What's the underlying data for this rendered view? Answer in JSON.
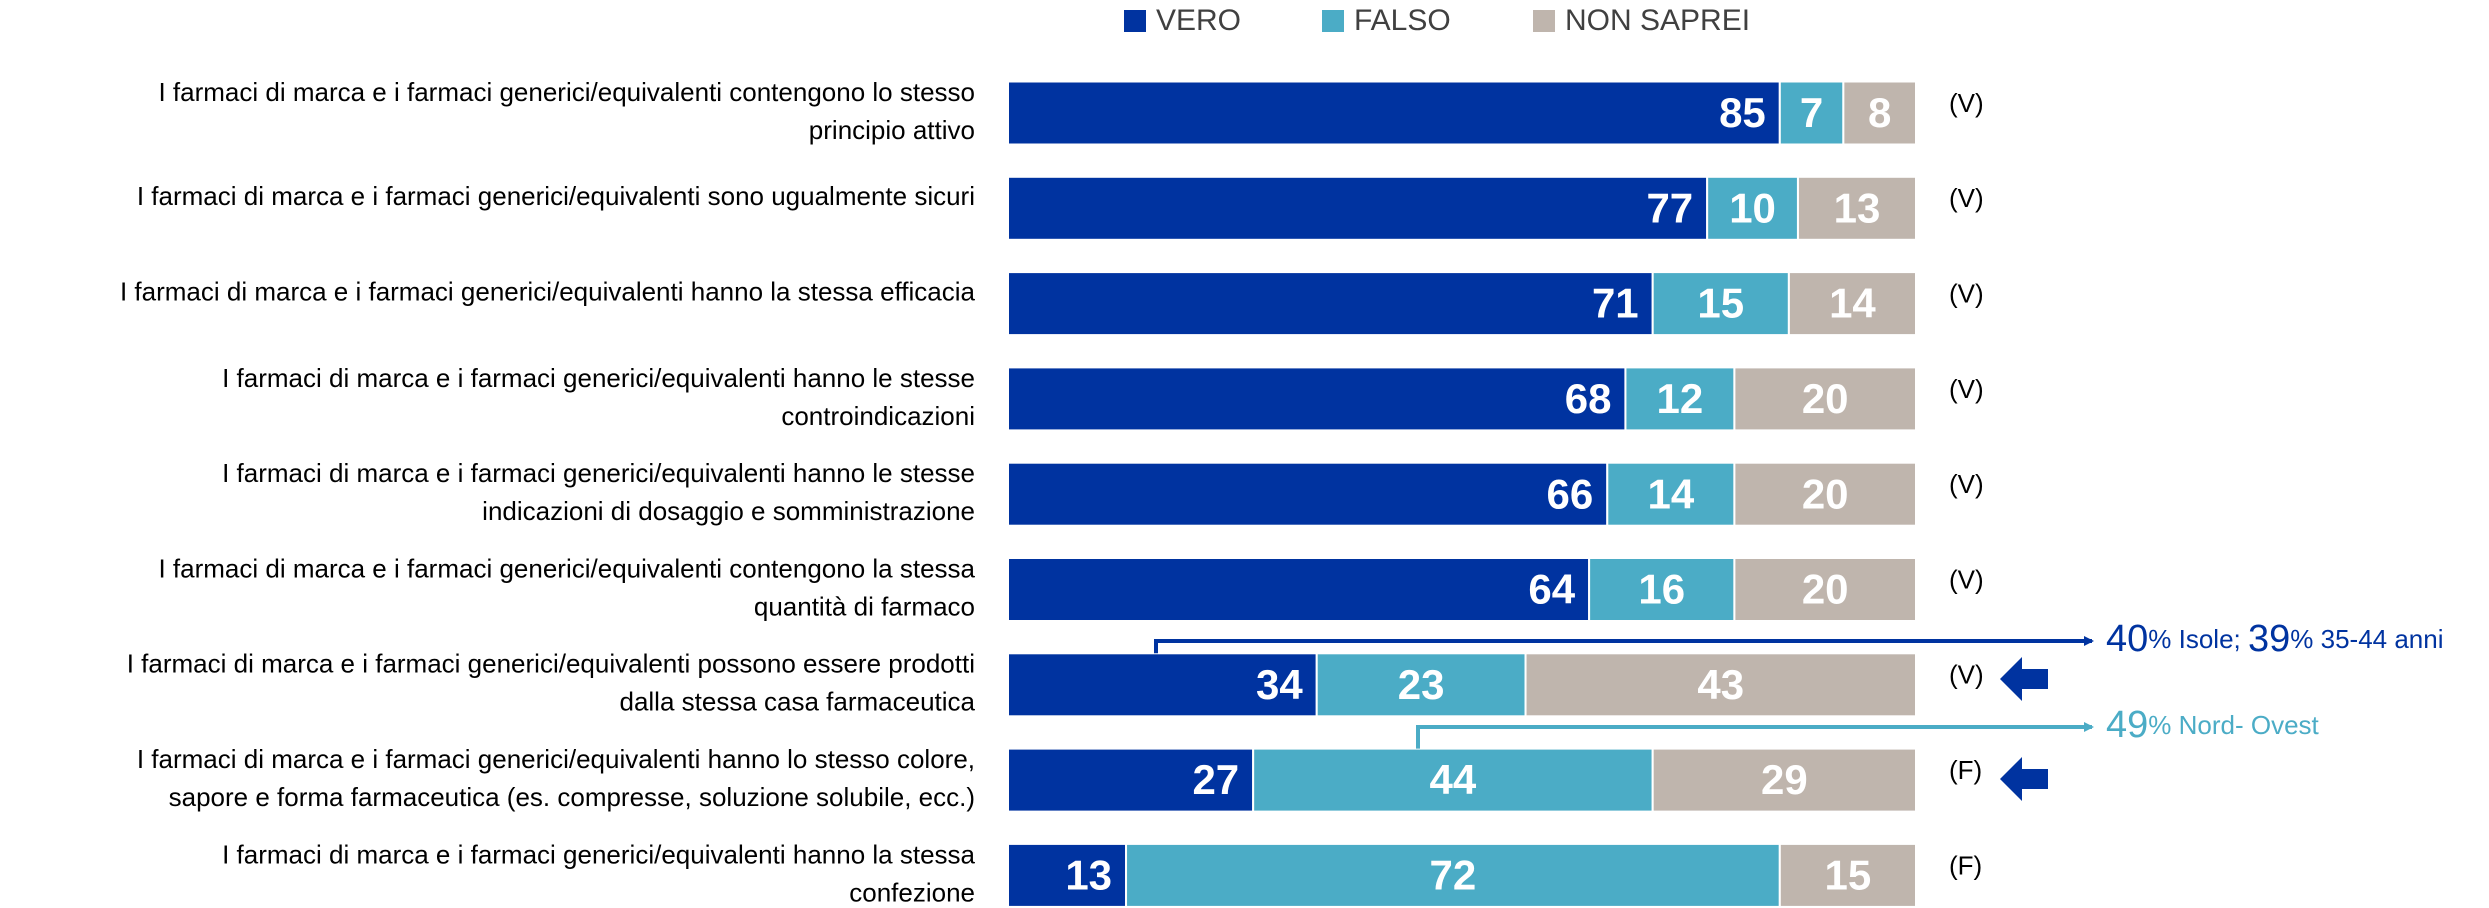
{
  "chart_data": {
    "type": "stacked_bar_horizontal",
    "categories": [
      [
        "I farmaci di marca e i farmaci generici/equivalenti contengono lo stesso",
        "principio attivo"
      ],
      [
        "I farmaci di marca e i farmaci generici/equivalenti sono ugualmente sicuri"
      ],
      [
        "I farmaci di marca e i farmaci generici/equivalenti hanno la stessa efficacia"
      ],
      [
        "I farmaci di marca e i farmaci generici/equivalenti hanno le stesse",
        "controindicazioni"
      ],
      [
        "I farmaci di marca e i farmaci generici/equivalenti hanno le stesse",
        "indicazioni di dosaggio e somministrazione"
      ],
      [
        "I farmaci di marca e i farmaci generici/equivalenti contengono la stessa",
        "quantità di farmaco"
      ],
      [
        "I farmaci di marca e i farmaci generici/equivalenti possono essere prodotti",
        "dalla stessa casa farmaceutica"
      ],
      [
        "I farmaci di marca e i farmaci generici/equivalenti hanno lo stesso colore,",
        "sapore e forma farmaceutica (es. compresse, soluzione solubile, ecc.)"
      ],
      [
        "I farmaci di marca e i farmaci generici/equivalenti hanno la stessa",
        "confezione"
      ]
    ],
    "series": [
      {
        "name": "VERO",
        "color": "#0033a0",
        "values": [
          85,
          77,
          71,
          68,
          66,
          64,
          34,
          27,
          13
        ]
      },
      {
        "name": "FALSO",
        "color": "#4bacc6",
        "values": [
          7,
          10,
          15,
          12,
          14,
          16,
          23,
          44,
          72
        ]
      },
      {
        "name": "NON SAPREI",
        "color": "#bfb5ad",
        "values": [
          8,
          13,
          14,
          20,
          20,
          20,
          43,
          29,
          15
        ]
      }
    ],
    "xlim": [
      0,
      100
    ],
    "answers": [
      "(V)",
      "(V)",
      "(V)",
      "(V)",
      "(V)",
      "(V)",
      "(V)",
      "(F)",
      "(F)"
    ],
    "annotations": [
      {
        "color": "#0033a0",
        "parts": [
          "40",
          "% Isole; ",
          "39",
          "% 35-44 anni"
        ]
      },
      {
        "color": "#4bacc6",
        "parts": [
          "49",
          "% Nord- Ovest"
        ]
      }
    ]
  }
}
